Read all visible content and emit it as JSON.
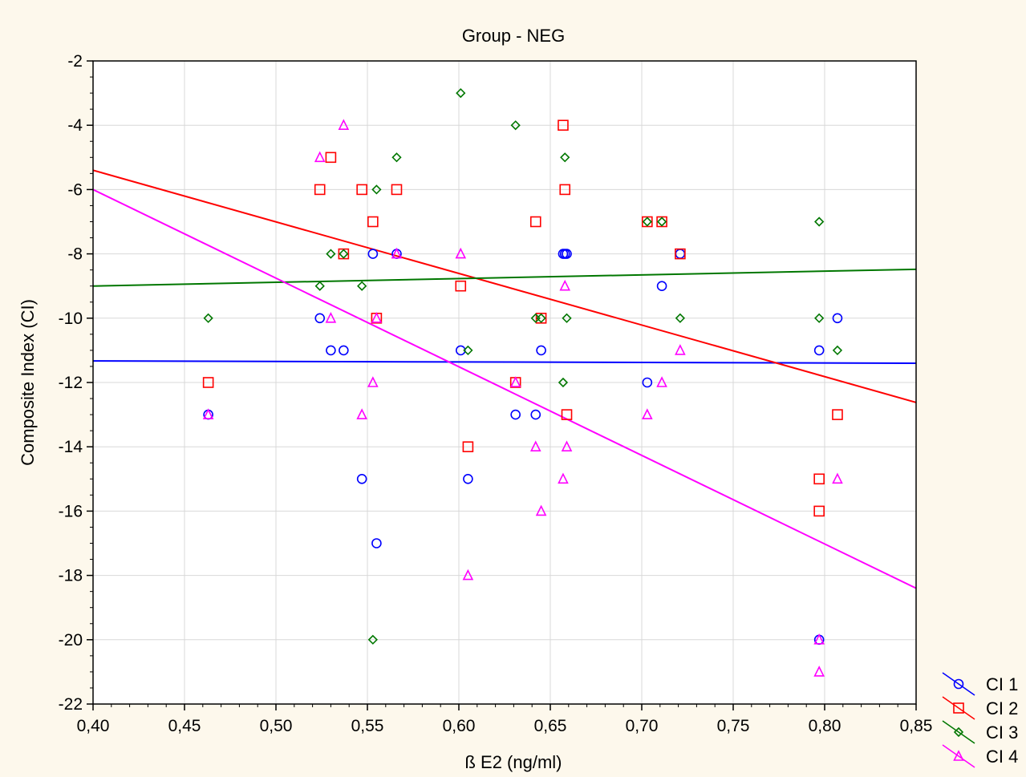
{
  "chart_data": {
    "type": "scatter",
    "title": "Group -  NEG",
    "xlabel": "ß E2 (ng/ml)",
    "ylabel": "Composite Index (CI)",
    "xlim": [
      0.4,
      0.85
    ],
    "ylim": [
      -22,
      -2
    ],
    "x_ticks": [
      0.4,
      0.45,
      0.5,
      0.55,
      0.6,
      0.65,
      0.7,
      0.75,
      0.8,
      0.85
    ],
    "x_tick_labels": [
      "0,40",
      "0,45",
      "0,50",
      "0,55",
      "0,60",
      "0,65",
      "0,70",
      "0,75",
      "0,80",
      "0,85"
    ],
    "y_ticks": [
      -2,
      -4,
      -6,
      -8,
      -10,
      -12,
      -14,
      -16,
      -18,
      -20,
      -22
    ],
    "y_tick_labels": [
      "-2",
      "-4",
      "-6",
      "-8",
      "-10",
      "-12",
      "-14",
      "-16",
      "-18",
      "-20",
      "-22"
    ],
    "grid": true,
    "legend_position": "bottom-right outside plot",
    "series": [
      {
        "name": "CI 1",
        "marker": "circle",
        "color": "#0000ff",
        "fit_line": [
          [
            0.4,
            -11.33
          ],
          [
            0.85,
            -11.4
          ]
        ],
        "points": [
          [
            0.463,
            -13
          ],
          [
            0.524,
            -10
          ],
          [
            0.53,
            -11
          ],
          [
            0.537,
            -11
          ],
          [
            0.547,
            -15
          ],
          [
            0.553,
            -8
          ],
          [
            0.555,
            -17
          ],
          [
            0.566,
            -8
          ],
          [
            0.601,
            -11
          ],
          [
            0.605,
            -15
          ],
          [
            0.631,
            -13
          ],
          [
            0.642,
            -13
          ],
          [
            0.645,
            -11
          ],
          [
            0.657,
            -8
          ],
          [
            0.658,
            -8
          ],
          [
            0.659,
            -8
          ],
          [
            0.703,
            -12
          ],
          [
            0.711,
            -9
          ],
          [
            0.721,
            -8
          ],
          [
            0.797,
            -11
          ],
          [
            0.797,
            -20
          ],
          [
            0.807,
            -10
          ]
        ]
      },
      {
        "name": "CI 2",
        "marker": "square",
        "color": "#ff0000",
        "fit_line": [
          [
            0.4,
            -5.4
          ],
          [
            0.85,
            -12.62
          ]
        ],
        "points": [
          [
            0.463,
            -12
          ],
          [
            0.524,
            -6
          ],
          [
            0.53,
            -5
          ],
          [
            0.537,
            -8
          ],
          [
            0.547,
            -6
          ],
          [
            0.553,
            -7
          ],
          [
            0.555,
            -10
          ],
          [
            0.566,
            -6
          ],
          [
            0.601,
            -9
          ],
          [
            0.605,
            -14
          ],
          [
            0.631,
            -12
          ],
          [
            0.642,
            -7
          ],
          [
            0.645,
            -10
          ],
          [
            0.657,
            -4
          ],
          [
            0.658,
            -6
          ],
          [
            0.659,
            -13
          ],
          [
            0.703,
            -7
          ],
          [
            0.711,
            -7
          ],
          [
            0.721,
            -8
          ],
          [
            0.797,
            -15
          ],
          [
            0.797,
            -16
          ],
          [
            0.807,
            -13
          ]
        ]
      },
      {
        "name": "CI 3",
        "marker": "diamond",
        "color": "#007700",
        "fit_line": [
          [
            0.4,
            -9.0
          ],
          [
            0.85,
            -8.48
          ]
        ],
        "points": [
          [
            0.463,
            -10
          ],
          [
            0.524,
            -9
          ],
          [
            0.53,
            -8
          ],
          [
            0.537,
            -8
          ],
          [
            0.547,
            -9
          ],
          [
            0.553,
            -20
          ],
          [
            0.555,
            -6
          ],
          [
            0.566,
            -5
          ],
          [
            0.601,
            -3
          ],
          [
            0.605,
            -11
          ],
          [
            0.631,
            -4
          ],
          [
            0.642,
            -10
          ],
          [
            0.645,
            -10
          ],
          [
            0.657,
            -12
          ],
          [
            0.658,
            -5
          ],
          [
            0.659,
            -10
          ],
          [
            0.703,
            -7
          ],
          [
            0.711,
            -7
          ],
          [
            0.721,
            -10
          ],
          [
            0.797,
            -7
          ],
          [
            0.797,
            -10
          ],
          [
            0.807,
            -11
          ]
        ]
      },
      {
        "name": "CI 4",
        "marker": "triangle",
        "color": "#ff00ff",
        "fit_line": [
          [
            0.4,
            -6.0
          ],
          [
            0.85,
            -18.4
          ]
        ],
        "points": [
          [
            0.463,
            -13
          ],
          [
            0.524,
            -5
          ],
          [
            0.53,
            -10
          ],
          [
            0.537,
            -4
          ],
          [
            0.547,
            -13
          ],
          [
            0.553,
            -12
          ],
          [
            0.555,
            -10
          ],
          [
            0.566,
            -8
          ],
          [
            0.601,
            -8
          ],
          [
            0.605,
            -18
          ],
          [
            0.631,
            -12
          ],
          [
            0.642,
            -14
          ],
          [
            0.645,
            -16
          ],
          [
            0.657,
            -15
          ],
          [
            0.658,
            -9
          ],
          [
            0.659,
            -14
          ],
          [
            0.703,
            -13
          ],
          [
            0.711,
            -12
          ],
          [
            0.721,
            -11
          ],
          [
            0.797,
            -20
          ],
          [
            0.797,
            -21
          ],
          [
            0.807,
            -15
          ]
        ]
      }
    ]
  }
}
